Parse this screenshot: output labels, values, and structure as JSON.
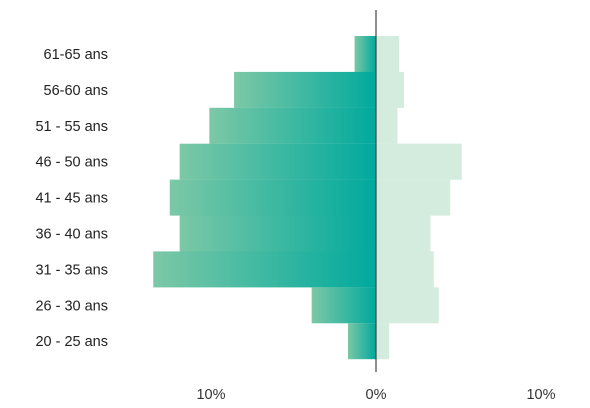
{
  "chart_data": {
    "type": "bar",
    "orientation": "horizontal",
    "layout": "population-pyramid",
    "categories": [
      "61-65 ans",
      "56-60 ans",
      "51 - 55 ans",
      "46 -  50 ans",
      "41 - 45 ans",
      "36 - 40 ans",
      "31 - 35 ans",
      "26 - 30 ans",
      "20 - 25 ans"
    ],
    "series": [
      {
        "side": "left",
        "color_start": "#7cc8a6",
        "color_end": "#00a99d",
        "values": [
          1.3,
          8.6,
          10.1,
          11.9,
          12.5,
          11.9,
          13.5,
          3.9,
          1.7
        ]
      },
      {
        "side": "right",
        "color": "#d3ecdd",
        "values": [
          1.4,
          1.7,
          1.3,
          5.2,
          4.5,
          3.3,
          3.5,
          3.8,
          0.8
        ]
      }
    ],
    "x_ticks": [
      {
        "value": -10,
        "label": "10%"
      },
      {
        "value": 0,
        "label": "0%"
      },
      {
        "value": 10,
        "label": "10%"
      }
    ],
    "axis_color": "#444444",
    "grid": false,
    "legend": "none"
  }
}
